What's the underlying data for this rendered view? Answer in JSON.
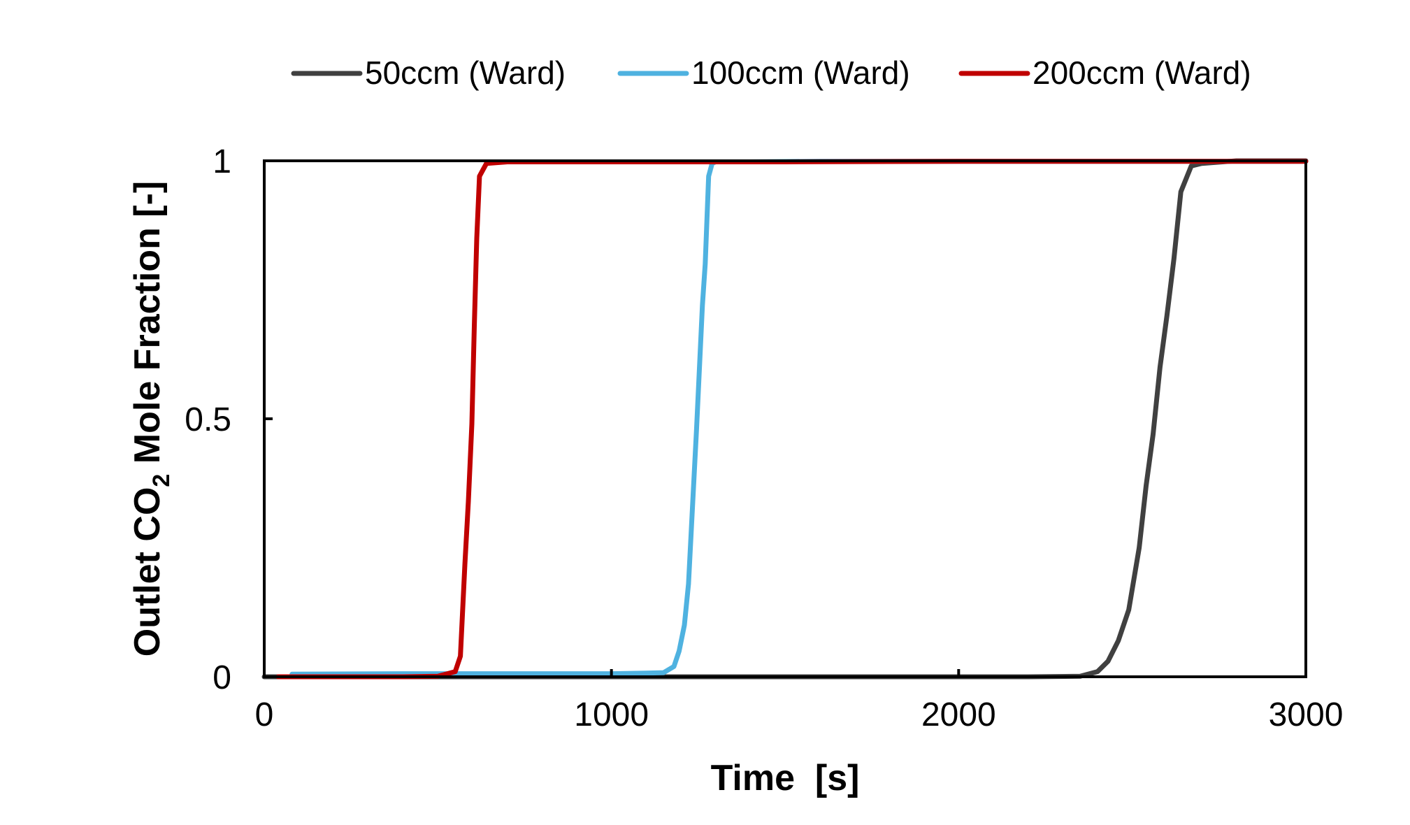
{
  "chart_data": {
    "type": "line",
    "title": "",
    "xlabel": "Time  [s]",
    "ylabel": {
      "prefix": "Outlet CO",
      "subscript": "2",
      "suffix": " Mole Fraction [-]"
    },
    "xlim": [
      0,
      3000
    ],
    "ylim": [
      0,
      1
    ],
    "xticks": [
      0,
      1000,
      2000,
      3000
    ],
    "xtick_labels": [
      "0",
      "1000",
      "2000",
      "3000"
    ],
    "yticks": [
      0,
      0.5,
      1
    ],
    "ytick_labels": [
      "0",
      "0.5",
      "1"
    ],
    "grid": false,
    "legend_position": "top",
    "series": [
      {
        "name": "50ccm (Ward)",
        "color": "#404040",
        "x": [
          0,
          200,
          600,
          1000,
          1400,
          1800,
          2200,
          2350,
          2400,
          2430,
          2460,
          2490,
          2520,
          2540,
          2560,
          2580,
          2600,
          2620,
          2640,
          2670,
          2700,
          2800,
          3000
        ],
        "y": [
          0,
          0,
          0,
          0,
          0,
          0,
          0,
          0.001,
          0.01,
          0.03,
          0.07,
          0.13,
          0.25,
          0.37,
          0.47,
          0.6,
          0.7,
          0.81,
          0.94,
          0.99,
          0.995,
          1,
          1
        ]
      },
      {
        "name": "100ccm (Ward)",
        "color": "#4fb2e0",
        "x": [
          80,
          400,
          800,
          1000,
          1100,
          1150,
          1180,
          1195,
          1210,
          1222,
          1235,
          1245,
          1255,
          1262,
          1270,
          1280,
          1290,
          1300,
          1400,
          1600,
          1800,
          2000,
          2500,
          3000
        ],
        "y": [
          0.005,
          0.006,
          0.006,
          0.006,
          0.007,
          0.008,
          0.02,
          0.05,
          0.1,
          0.18,
          0.35,
          0.48,
          0.62,
          0.72,
          0.8,
          0.97,
          0.995,
          0.998,
          0.998,
          0.999,
          0.999,
          0.999,
          0.999,
          0.999
        ]
      },
      {
        "name": "200ccm (Ward)",
        "color": "#c00000",
        "x": [
          40,
          200,
          400,
          500,
          550,
          565,
          578,
          588,
          598,
          605,
          612,
          620,
          640,
          700,
          1000,
          1500,
          2000,
          3000
        ],
        "y": [
          0,
          0,
          0,
          0.001,
          0.01,
          0.04,
          0.22,
          0.34,
          0.49,
          0.68,
          0.85,
          0.97,
          0.995,
          0.998,
          0.998,
          0.998,
          0.999,
          0.999
        ]
      }
    ]
  }
}
